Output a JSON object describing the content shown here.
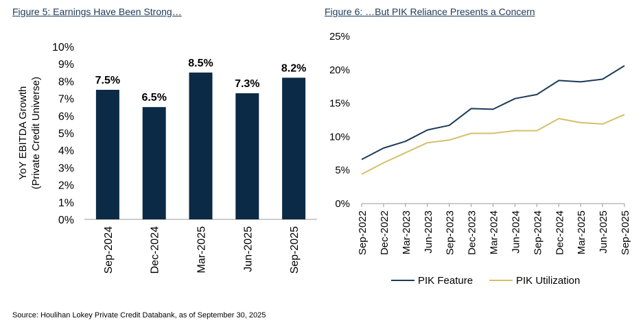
{
  "figure_left": {
    "title": "Figure 5: Earnings Have Been Strong…"
  },
  "figure_right": {
    "title": "Figure 6: …But PIK Reliance Presents a Concern"
  },
  "source": "Source: Houlihan Lokey Private Credit Databank, as of September 30, 2025",
  "chart_data": [
    {
      "type": "bar",
      "title": "Figure 5: Earnings Have Been Strong…",
      "ylabel": [
        "YoY EBITDA Growth",
        "(Private Credit Universe)"
      ],
      "categories": [
        "Sep-2024",
        "Dec-2024",
        "Mar-2025",
        "Jun-2025",
        "Sep-2025"
      ],
      "values": [
        7.5,
        6.5,
        8.5,
        7.3,
        8.2
      ],
      "data_labels": [
        "7.5%",
        "6.5%",
        "8.5%",
        "7.3%",
        "8.2%"
      ],
      "ylim": [
        0,
        10
      ],
      "y_ticks": [
        "0%",
        "1%",
        "2%",
        "3%",
        "4%",
        "5%",
        "6%",
        "7%",
        "8%",
        "9%",
        "10%"
      ],
      "grid": false,
      "bar_color": "#0b2a45"
    },
    {
      "type": "line",
      "title": "Figure 6: …But PIK Reliance Presents a Concern",
      "x": [
        "Sep-2022",
        "Dec-2022",
        "Mar-2023",
        "Jun-2023",
        "Sep-2023",
        "Dec-2023",
        "Mar-2024",
        "Jun-2024",
        "Sep-2024",
        "Dec-2024",
        "Mar-2025",
        "Jun-2025",
        "Sep-2025"
      ],
      "series": [
        {
          "name": "PIK Feature",
          "color": "#1b3a57",
          "values": [
            6.6,
            8.3,
            9.3,
            11.0,
            11.7,
            14.2,
            14.1,
            15.7,
            16.3,
            18.4,
            18.2,
            18.6,
            20.6
          ]
        },
        {
          "name": "PIK Utilization",
          "color": "#d4bf6a",
          "values": [
            4.4,
            6.1,
            7.6,
            9.1,
            9.5,
            10.5,
            10.5,
            10.9,
            10.9,
            12.7,
            12.1,
            11.9,
            13.3
          ]
        }
      ],
      "ylim": [
        0,
        25
      ],
      "y_ticks": [
        "0%",
        "5%",
        "10%",
        "15%",
        "20%",
        "25%"
      ],
      "grid": false,
      "legend": "bottom"
    }
  ]
}
